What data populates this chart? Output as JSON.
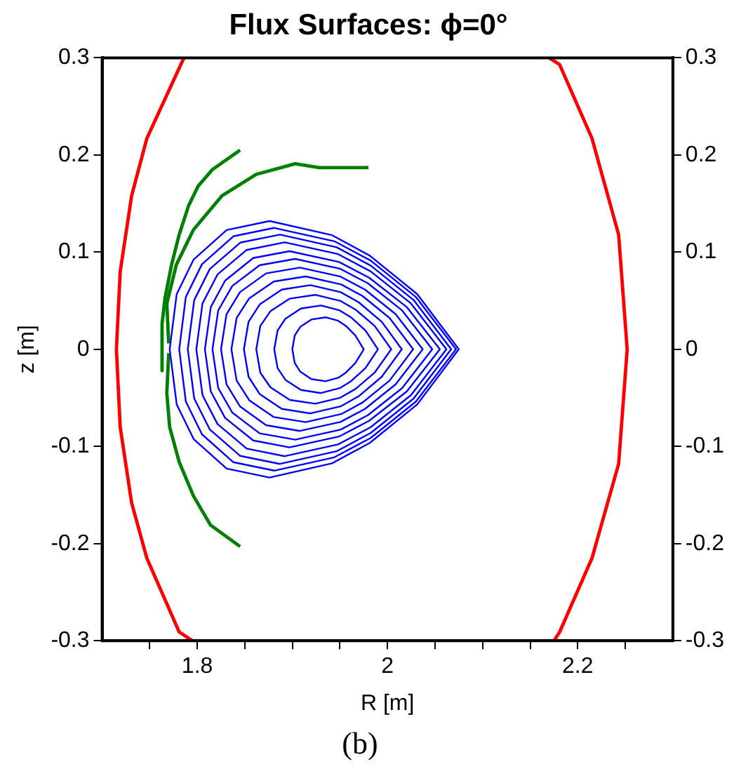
{
  "chart_data": {
    "type": "line",
    "title": "Flux Surfaces: ϕ=0°",
    "xlabel": "R [m]",
    "ylabel": "z [m]",
    "xlim": [
      1.7,
      2.3
    ],
    "xticks": [
      {
        "value": 1.75,
        "label": null
      },
      1.8,
      {
        "value": 1.85,
        "label": null
      },
      {
        "value": 1.9,
        "label": null
      },
      {
        "value": 1.95,
        "label": null
      },
      2,
      {
        "value": 2.05,
        "label": null
      },
      {
        "value": 2.1,
        "label": null
      },
      {
        "value": 2.15,
        "label": null
      },
      2.2,
      {
        "value": 2.25,
        "label": null
      }
    ],
    "ylim": [
      -0.3,
      0.3
    ],
    "yticks": [
      -0.3,
      -0.2,
      -0.1,
      0,
      0.1,
      0.2,
      0.3
    ],
    "y2lim": [
      -0.3,
      0.3
    ],
    "y2ticks": [
      -0.3,
      -0.2,
      -0.1,
      0,
      0.1,
      0.2,
      0.3
    ],
    "annotations": [
      "(b)"
    ],
    "series": [
      {
        "type": "line",
        "color": "#ff0000",
        "x": [
          1.786,
          1.747,
          1.731,
          1.719,
          1.715,
          1.719,
          1.731,
          1.747,
          1.781,
          1.795
        ],
        "values": [
          0.3,
          0.217,
          0.158,
          0.08,
          0,
          -0.08,
          -0.158,
          -0.215,
          -0.291,
          -0.3
        ]
      },
      {
        "type": "line",
        "color": "#ff0000",
        "x": [
          2.17,
          2.181,
          2.215,
          2.243,
          2.252,
          2.243,
          2.215,
          2.181,
          2.175
        ],
        "values": [
          0.3,
          0.293,
          0.217,
          0.118,
          0,
          -0.118,
          -0.215,
          -0.291,
          -0.3
        ]
      },
      {
        "type": "line",
        "color": "#008000",
        "x": [
          1.845,
          1.816,
          1.801,
          1.791,
          1.781,
          1.773,
          1.766,
          1.763,
          1.763
        ],
        "values": [
          0.205,
          0.185,
          0.168,
          0.148,
          0.118,
          0.087,
          0.052,
          0.026,
          -0.022
        ]
      },
      {
        "type": "line",
        "color": "#008000",
        "x": [
          1.98,
          1.928,
          1.903,
          1.862,
          1.826,
          1.796,
          1.778,
          1.768,
          1.77
        ],
        "values": [
          0.187,
          0.187,
          0.191,
          0.18,
          0.158,
          0.123,
          0.087,
          0.047,
          0.006
        ]
      },
      {
        "type": "line",
        "color": "#008000",
        "x": [
          1.77,
          1.768,
          1.771,
          1.781,
          1.796,
          1.814,
          1.845
        ],
        "values": [
          -0.004,
          -0.045,
          -0.08,
          -0.116,
          -0.151,
          -0.181,
          -0.203
        ]
      }
    ]
  }
}
